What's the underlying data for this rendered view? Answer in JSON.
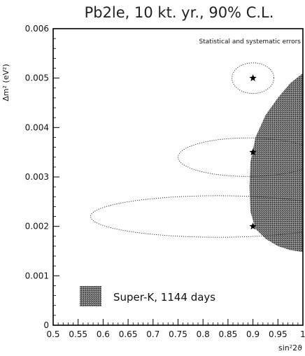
{
  "chart_data": {
    "type": "scatter",
    "title": "Pb2le, 10 kt. yr., 90% C.L.",
    "annotation": "Statistical and systematic errors",
    "xlabel": "sin²2ϑ",
    "ylabel": "Δm² (eV²)",
    "xlim": [
      0.5,
      1.0
    ],
    "ylim": [
      0,
      0.006
    ],
    "x_ticks": [
      "0.5",
      "0.55",
      "0.6",
      "0.65",
      "0.7",
      "0.75",
      "0.8",
      "0.85",
      "0.9",
      "0.95",
      "1"
    ],
    "y_ticks": [
      "0",
      "0.001",
      "0.002",
      "0.003",
      "0.004",
      "0.005",
      "0.006"
    ],
    "series": [
      {
        "name": "Super-K, 1144 days",
        "kind": "shaded-region",
        "color": "#555555",
        "boundary": [
          [
            1.0,
            0.0051
          ],
          [
            0.975,
            0.0049
          ],
          [
            0.95,
            0.0046
          ],
          [
            0.925,
            0.00425
          ],
          [
            0.905,
            0.0038
          ],
          [
            0.895,
            0.0033
          ],
          [
            0.893,
            0.0028
          ],
          [
            0.895,
            0.0023
          ],
          [
            0.905,
            0.00195
          ],
          [
            0.925,
            0.00175
          ],
          [
            0.95,
            0.0016
          ],
          [
            0.975,
            0.00152
          ],
          [
            1.0,
            0.00148
          ]
        ]
      },
      {
        "kind": "best-fit-points",
        "marker": "star",
        "points": [
          [
            0.9,
            0.005
          ],
          [
            0.9,
            0.0035
          ],
          [
            0.9,
            0.002
          ]
        ]
      },
      {
        "kind": "confidence-ellipses",
        "style": "dotted",
        "ellipses": [
          {
            "center": [
              0.9,
              0.005
            ],
            "x_half_width": 0.042,
            "y_half_height": 0.00031
          },
          {
            "center": [
              0.89,
              0.0034
            ],
            "x_half_width": 0.14,
            "y_half_height": 0.00039
          },
          {
            "center": [
              0.83,
              0.0022
            ],
            "x_half_width": 0.255,
            "y_half_height": 0.00042
          }
        ]
      }
    ],
    "legend": {
      "position": "bottom-left",
      "label": "Super-K, 1144 days"
    }
  }
}
